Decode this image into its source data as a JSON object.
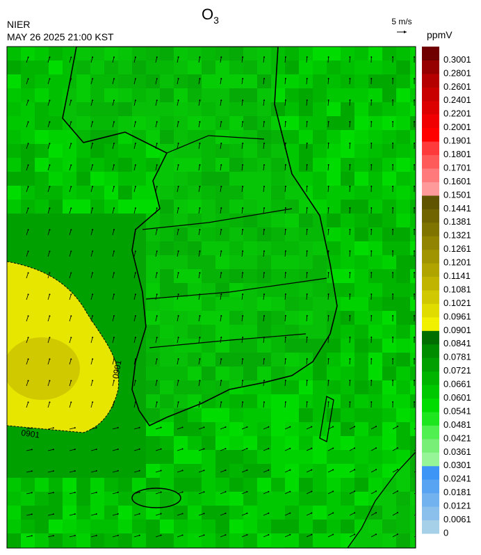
{
  "header": {
    "agency": "NIER",
    "timestamp": "MAY 26 2025 21:00 KST",
    "title": "O",
    "title_subscript": "3"
  },
  "wind_scale": {
    "label": "5 m/s"
  },
  "contour_labels": [
    "0901",
    "0901"
  ],
  "colorbar": {
    "unit": "ppmV",
    "levels": [
      0,
      0.0061,
      0.0121,
      0.0181,
      0.0241,
      0.0301,
      0.0361,
      0.0421,
      0.0481,
      0.0541,
      0.0601,
      0.0661,
      0.0721,
      0.0781,
      0.0841,
      0.0901,
      0.0961,
      0.1021,
      0.1081,
      0.1141,
      0.1201,
      0.1261,
      0.1321,
      0.1381,
      0.1441,
      0.1501,
      0.1601,
      0.1701,
      0.1801,
      0.1901,
      0.2001,
      0.2201,
      0.2401,
      0.2601,
      0.2801,
      0.3001
    ],
    "colors": [
      "#a6cfe8",
      "#8cc0ec",
      "#72b2ef",
      "#58a4f2",
      "#3d96f5",
      "#96f596",
      "#78f078",
      "#50f050",
      "#1ee61e",
      "#00dc00",
      "#00c800",
      "#00b400",
      "#00a000",
      "#008c00",
      "#006e00",
      "#f0f000",
      "#e0dc00",
      "#d0c800",
      "#c0b400",
      "#b0a400",
      "#a09400",
      "#908400",
      "#807400",
      "#706400",
      "#605400",
      "#ff9a9a",
      "#ff7a7a",
      "#ff5a5a",
      "#ff3a3a",
      "#ff0000",
      "#f00000",
      "#dc0000",
      "#c80000",
      "#b40000",
      "#960000",
      "#700000"
    ]
  }
}
